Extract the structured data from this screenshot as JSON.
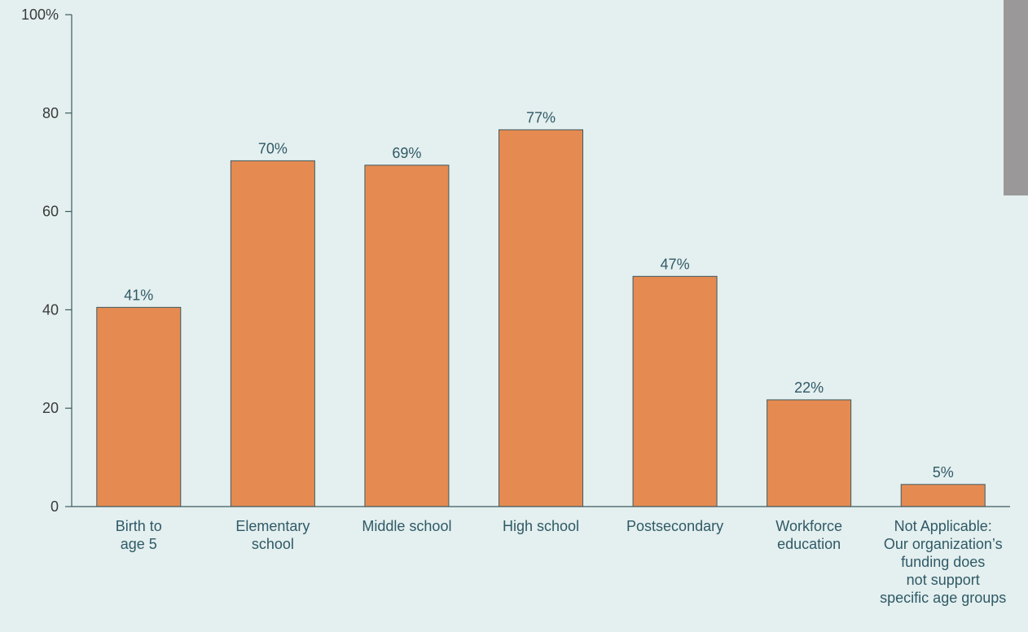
{
  "colors": {
    "background": "#e4efef",
    "bar_fill": "#e58b52",
    "bar_stroke": "#3d5a60",
    "axis": "#3d5a60",
    "side_tab": "#9a9898"
  },
  "chart_data": {
    "type": "bar",
    "categories": [
      [
        "Birth to",
        "age 5"
      ],
      [
        "Elementary",
        "school"
      ],
      [
        "Middle school"
      ],
      [
        "High school"
      ],
      [
        "Postsecondary"
      ],
      [
        "Workforce",
        "education"
      ],
      [
        "Not Applicable:",
        "Our organization’s",
        "funding does",
        "not support",
        "specific age groups"
      ]
    ],
    "values": [
      40.5,
      70.3,
      69.4,
      76.6,
      46.8,
      21.7,
      4.5
    ],
    "data_labels": [
      "41%",
      "70%",
      "69%",
      "77%",
      "47%",
      "22%",
      "5%"
    ],
    "ylim": [
      0,
      100
    ],
    "y_ticks": [
      0,
      20,
      40,
      60,
      80,
      100
    ],
    "y_tick_labels": [
      "0",
      "20",
      "40",
      "60",
      "80",
      "100%"
    ],
    "title": "",
    "xlabel": "",
    "ylabel": "",
    "grid": false
  }
}
